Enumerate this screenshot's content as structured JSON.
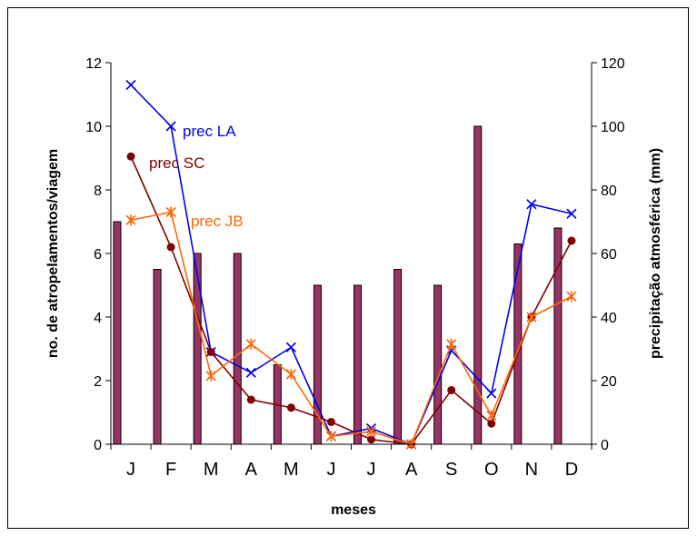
{
  "chart_data": {
    "type": "bar+line",
    "categories": [
      "J",
      "F",
      "M",
      "A",
      "M",
      "J",
      "J",
      "A",
      "S",
      "O",
      "N",
      "D"
    ],
    "xlabel": "meses",
    "ylabel_left": "no. de atropelamentos/viagem",
    "ylabel_right": "precipitação atmosférica (mm)",
    "ylim_left": [
      0,
      12
    ],
    "ylim_right": [
      0,
      120
    ],
    "yticks_left": [
      "0",
      "2",
      "4",
      "6",
      "8",
      "10",
      "12"
    ],
    "yticks_right": [
      "0",
      "20",
      "40",
      "60",
      "80",
      "100",
      "120"
    ],
    "bars": {
      "axis": "left",
      "color": "#993366",
      "values": [
        7,
        5.5,
        6,
        6,
        2.5,
        5,
        5,
        5.5,
        5,
        10,
        6.3,
        6.8
      ]
    },
    "series": [
      {
        "name": "prec LA",
        "axis": "right",
        "color": "#0000ee",
        "marker": "x",
        "values": [
          113,
          100,
          29,
          22.5,
          30.5,
          2.5,
          5,
          0,
          29.5,
          16,
          75.5,
          72.5
        ]
      },
      {
        "name": "prec SC",
        "axis": "right",
        "color": "#800000",
        "marker": "circle",
        "values": [
          90.5,
          62,
          29,
          14,
          11.5,
          7,
          1.5,
          0,
          17,
          6.5,
          40,
          64
        ]
      },
      {
        "name": "prec JB",
        "axis": "right",
        "color": "#ff6600",
        "marker": "star",
        "values": [
          70.5,
          73,
          21.5,
          31.5,
          22,
          2.5,
          4,
          0,
          31.5,
          9,
          40,
          46.5
        ]
      }
    ]
  }
}
